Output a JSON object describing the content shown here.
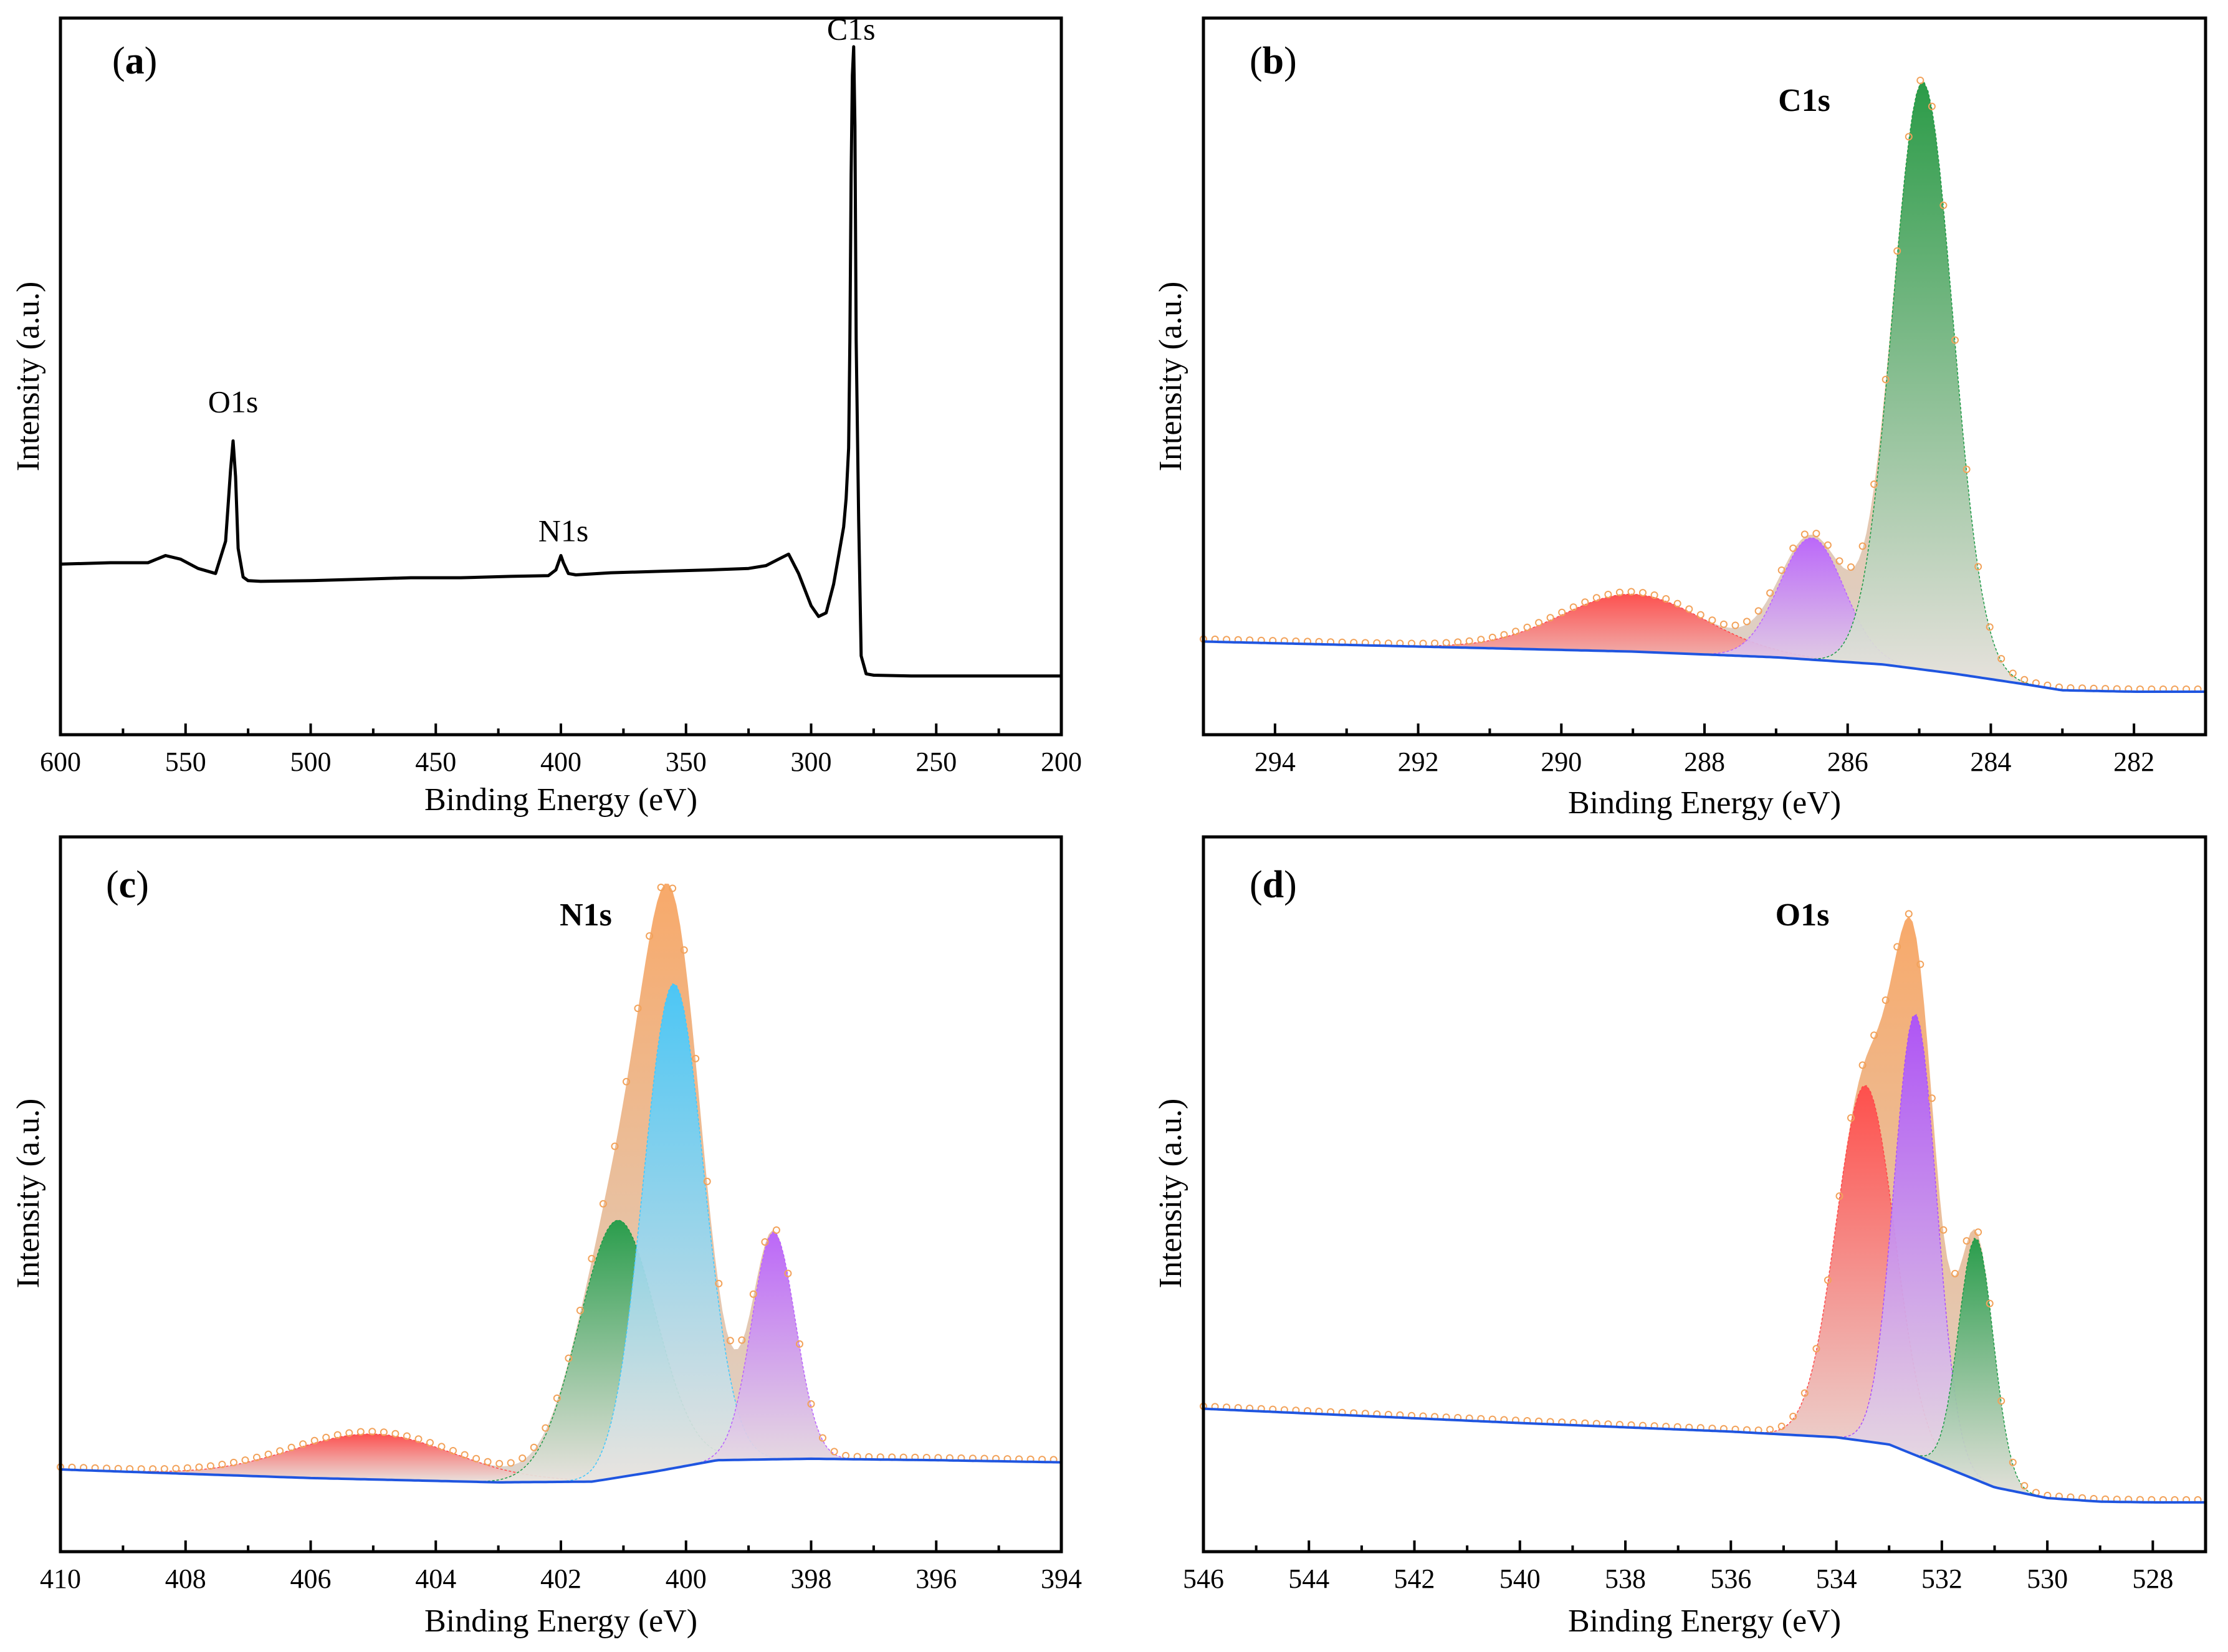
{
  "colors": {
    "envelope": "#f7a05a",
    "envelope_light": "#d8cfc8",
    "background": "#1f55e0",
    "survey_line": "#000000",
    "red": "#ff4747",
    "green": "#1a9a45",
    "purple": "#b860ff",
    "violet": "#a94dff",
    "cyan": "#3ec8ff",
    "marker": "#f2a25a"
  },
  "chart_data": [
    {
      "id": "a",
      "type": "line",
      "panel_label": "a",
      "title": "",
      "xlabel": "Binding Energy (eV)",
      "ylabel": "Intensity (a.u.)",
      "xlim": [
        600,
        200
      ],
      "ylim": [
        0,
        1
      ],
      "xticks": [
        600,
        550,
        500,
        450,
        400,
        350,
        300,
        250,
        200
      ],
      "xtick_labels": [
        "600",
        "550",
        "500",
        "450",
        "400",
        "350",
        "300",
        "250",
        "200"
      ],
      "peak_labels": [
        {
          "text": "O1s",
          "x": 531,
          "y": 0.45
        },
        {
          "text": "N1s",
          "x": 399,
          "y": 0.27
        },
        {
          "text": "C1s",
          "x": 284,
          "y": 0.97
        }
      ],
      "survey": {
        "x": [
          600,
          580,
          565,
          558,
          552,
          545,
          538,
          534,
          532,
          531,
          530,
          529,
          527,
          525,
          520,
          500,
          480,
          460,
          440,
          420,
          405,
          402,
          400,
          399,
          397,
          394,
          380,
          360,
          340,
          325,
          318,
          313,
          309,
          305,
          300,
          297,
          294,
          291,
          289,
          287,
          286,
          285,
          284.5,
          284,
          283.5,
          283,
          282.5,
          282,
          281,
          280,
          278,
          275,
          260,
          240,
          220,
          200
        ],
        "y": [
          0.238,
          0.24,
          0.24,
          0.25,
          0.245,
          0.232,
          0.225,
          0.27,
          0.37,
          0.41,
          0.36,
          0.26,
          0.22,
          0.215,
          0.214,
          0.215,
          0.217,
          0.219,
          0.219,
          0.221,
          0.222,
          0.23,
          0.25,
          0.24,
          0.225,
          0.223,
          0.226,
          0.228,
          0.23,
          0.232,
          0.236,
          0.245,
          0.252,
          0.225,
          0.18,
          0.165,
          0.17,
          0.21,
          0.25,
          0.29,
          0.33,
          0.4,
          0.55,
          0.78,
          0.92,
          0.96,
          0.85,
          0.55,
          0.3,
          0.11,
          0.085,
          0.083,
          0.082,
          0.082,
          0.082,
          0.082
        ]
      }
    },
    {
      "id": "b",
      "type": "area",
      "panel_label": "b",
      "title": "C1s",
      "xlabel": "Binding Energy (eV)",
      "ylabel": "Intensity (a.u.)",
      "xlim": [
        295,
        281
      ],
      "ylim": [
        0,
        1
      ],
      "xticks": [
        294,
        292,
        290,
        288,
        286,
        284,
        282
      ],
      "xtick_labels": [
        "294",
        "292",
        "290",
        "288",
        "286",
        "284",
        "282"
      ],
      "background": {
        "x": [
          295,
          292,
          289,
          287,
          285.5,
          284.5,
          283.5,
          283,
          282,
          281
        ],
        "y": [
          0.13,
          0.123,
          0.116,
          0.108,
          0.098,
          0.085,
          0.07,
          0.062,
          0.06,
          0.06
        ]
      },
      "components": [
        {
          "name": "peak-red",
          "center": 289.0,
          "height": 0.08,
          "sigma": 1.0,
          "color": "#ff4747"
        },
        {
          "name": "peak-purple",
          "center": 286.5,
          "height": 0.17,
          "sigma": 0.45,
          "color": "#b860ff"
        },
        {
          "name": "peak-green",
          "center": 284.95,
          "height": 0.82,
          "sigma": 0.42,
          "color": "#1a9a45"
        }
      ],
      "envelope_peak": 0.95
    },
    {
      "id": "c",
      "type": "area",
      "panel_label": "c",
      "title": "N1s",
      "xlabel": "Binding Energy (eV)",
      "ylabel": "Intensity (a.u.)",
      "xlim": [
        410,
        394
      ],
      "ylim": [
        0,
        1
      ],
      "xticks": [
        410,
        408,
        406,
        404,
        402,
        400,
        398,
        396,
        394
      ],
      "xtick_labels": [
        "410",
        "408",
        "406",
        "404",
        "402",
        "400",
        "398",
        "396",
        "394"
      ],
      "background": {
        "x": [
          410,
          406,
          403,
          401.5,
          400.5,
          399.5,
          398,
          396,
          394
        ],
        "y": [
          0.115,
          0.103,
          0.097,
          0.098,
          0.112,
          0.128,
          0.13,
          0.128,
          0.125
        ]
      },
      "components": [
        {
          "name": "peak-red",
          "center": 405.0,
          "height": 0.06,
          "sigma": 1.3,
          "color": "#ff4747"
        },
        {
          "name": "peak-green",
          "center": 401.1,
          "height": 0.34,
          "sigma": 0.62,
          "color": "#1a9a45"
        },
        {
          "name": "peak-cyan",
          "center": 400.2,
          "height": 0.64,
          "sigma": 0.48,
          "color": "#3ec8ff"
        },
        {
          "name": "peak-purple",
          "center": 398.6,
          "height": 0.3,
          "sigma": 0.35,
          "color": "#b860ff"
        }
      ],
      "envelope_peak": 0.95
    },
    {
      "id": "d",
      "type": "area",
      "panel_label": "d",
      "title": "O1s",
      "xlabel": "Binding Energy (eV)",
      "ylabel": "Intensity (a.u.)",
      "xlim": [
        546,
        527
      ],
      "ylim": [
        0,
        1
      ],
      "xticks": [
        546,
        544,
        542,
        540,
        538,
        536,
        534,
        532,
        530,
        528
      ],
      "xtick_labels": [
        "546",
        "544",
        "542",
        "540",
        "538",
        "536",
        "534",
        "532",
        "530",
        "528"
      ],
      "background": {
        "x": [
          546,
          540,
          536,
          534,
          533,
          532,
          531,
          530,
          529,
          528,
          527
        ],
        "y": [
          0.2,
          0.18,
          0.168,
          0.16,
          0.15,
          0.12,
          0.09,
          0.075,
          0.07,
          0.069,
          0.069
        ]
      },
      "components": [
        {
          "name": "peak-red",
          "center": 533.45,
          "height": 0.5,
          "sigma": 0.55,
          "color": "#ff4747"
        },
        {
          "name": "peak-violet",
          "center": 532.5,
          "height": 0.62,
          "sigma": 0.4,
          "color": "#a94dff"
        },
        {
          "name": "peak-green",
          "center": 531.35,
          "height": 0.34,
          "sigma": 0.33,
          "color": "#1a9a45"
        }
      ],
      "envelope_peak": 0.95
    }
  ]
}
